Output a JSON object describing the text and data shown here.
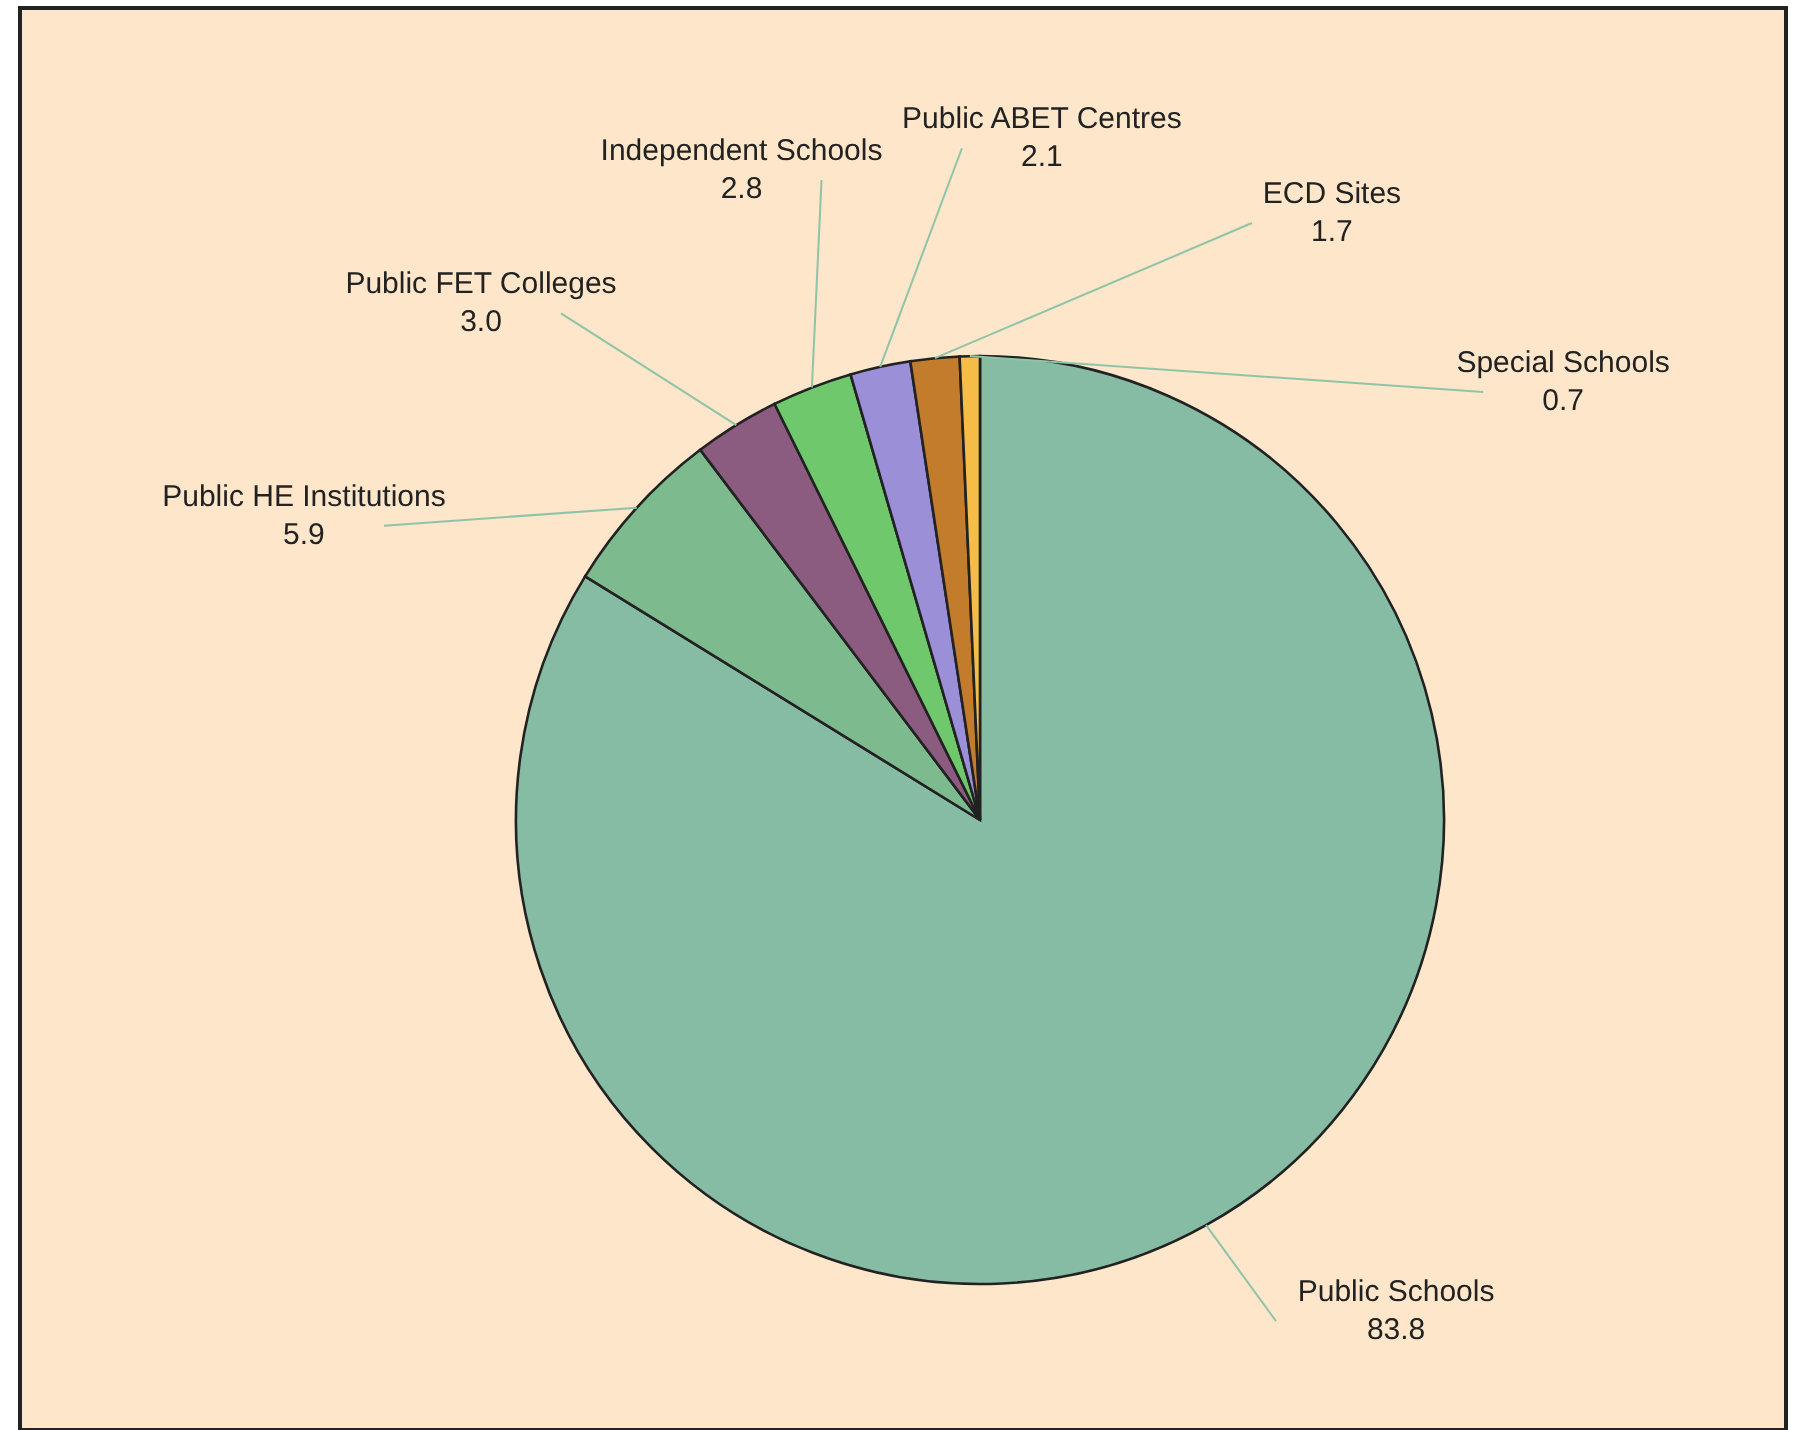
{
  "chart_data": {
    "type": "pie",
    "categories": [
      "Public Schools",
      "Public HE Institutions",
      "Public FET Colleges",
      "Independent Schools",
      "Public ABET Centres",
      "ECD Sites",
      "Special Schools"
    ],
    "values": [
      83.8,
      5.9,
      3.0,
      2.8,
      2.1,
      1.7,
      0.7
    ],
    "colors": [
      "#86bca3",
      "#7dba8e",
      "#8c5b80",
      "#6fc86c",
      "#9b8fd8",
      "#c27c2c",
      "#f6bc48"
    ],
    "value_labels": [
      "83.8",
      "5.9",
      "3.0",
      "2.8",
      "2.1",
      "1.7",
      "0.7"
    ]
  }
}
